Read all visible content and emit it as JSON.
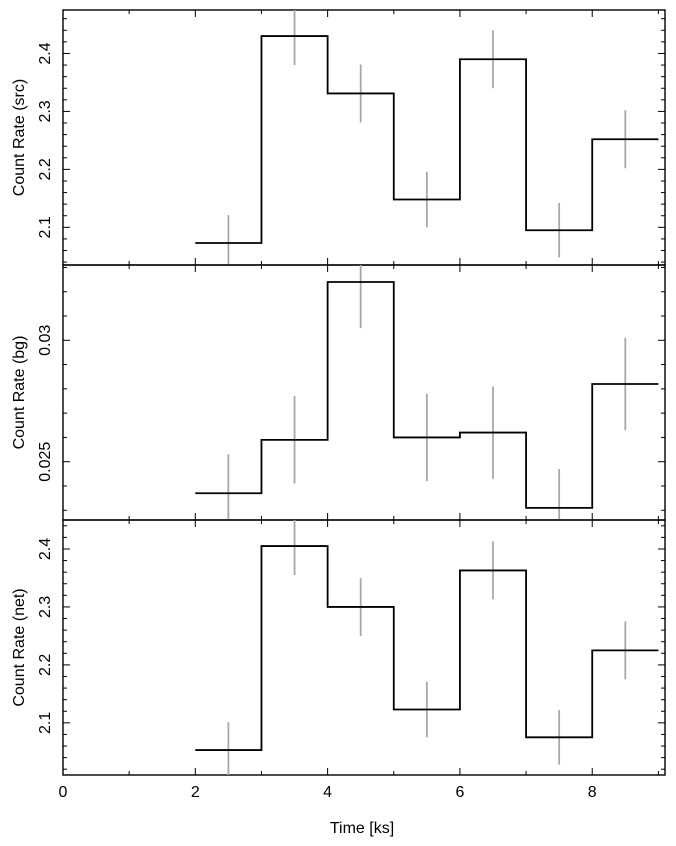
{
  "chart_data": {
    "type": "line",
    "subtype": "step-histogram-with-error-bars",
    "xlabel": "Time [ks]",
    "xlim": [
      0,
      9.1
    ],
    "x_ticks": [
      0,
      2,
      4,
      6,
      8
    ],
    "x_tick_labels": [
      "0",
      "2",
      "4",
      "6",
      "8"
    ],
    "bin_edges": [
      2,
      3,
      4,
      5,
      6,
      7,
      8,
      9
    ],
    "bin_centers": [
      2.5,
      3.5,
      4.5,
      5.5,
      6.5,
      7.5,
      8.5
    ],
    "line_color": "#000000",
    "errorbar_color": "#a8a8a8",
    "panels": [
      {
        "id": "src",
        "ylabel": "Count Rate (src)",
        "ylim": [
          2.035,
          2.475
        ],
        "y_ticks": [
          2.1,
          2.2,
          2.3,
          2.4
        ],
        "y_tick_labels": [
          "2.1",
          "2.2",
          "2.3",
          "2.4"
        ],
        "values": [
          2.073,
          2.43,
          2.331,
          2.148,
          2.39,
          2.095,
          2.252
        ],
        "errors": [
          0.048,
          0.05,
          0.05,
          0.048,
          0.05,
          0.047,
          0.05
        ]
      },
      {
        "id": "bg",
        "ylabel": "Count Rate (bg)",
        "ylim": [
          0.0226,
          0.0331
        ],
        "y_ticks": [
          0.025,
          0.03
        ],
        "y_tick_labels": [
          "0.025",
          "0.03"
        ],
        "values": [
          0.0237,
          0.0259,
          0.0324,
          0.026,
          0.0262,
          0.0231,
          0.0282
        ],
        "errors": [
          0.0016,
          0.0018,
          0.0019,
          0.0018,
          0.0019,
          0.0016,
          0.0019
        ]
      },
      {
        "id": "net",
        "ylabel": "Count Rate (net)",
        "ylim": [
          2.01,
          2.45
        ],
        "y_ticks": [
          2.1,
          2.2,
          2.3,
          2.4
        ],
        "y_tick_labels": [
          "2.1",
          "2.2",
          "2.3",
          "2.4"
        ],
        "values": [
          2.053,
          2.405,
          2.3,
          2.123,
          2.363,
          2.075,
          2.225
        ],
        "errors": [
          0.048,
          0.05,
          0.05,
          0.048,
          0.05,
          0.047,
          0.05
        ]
      }
    ]
  }
}
